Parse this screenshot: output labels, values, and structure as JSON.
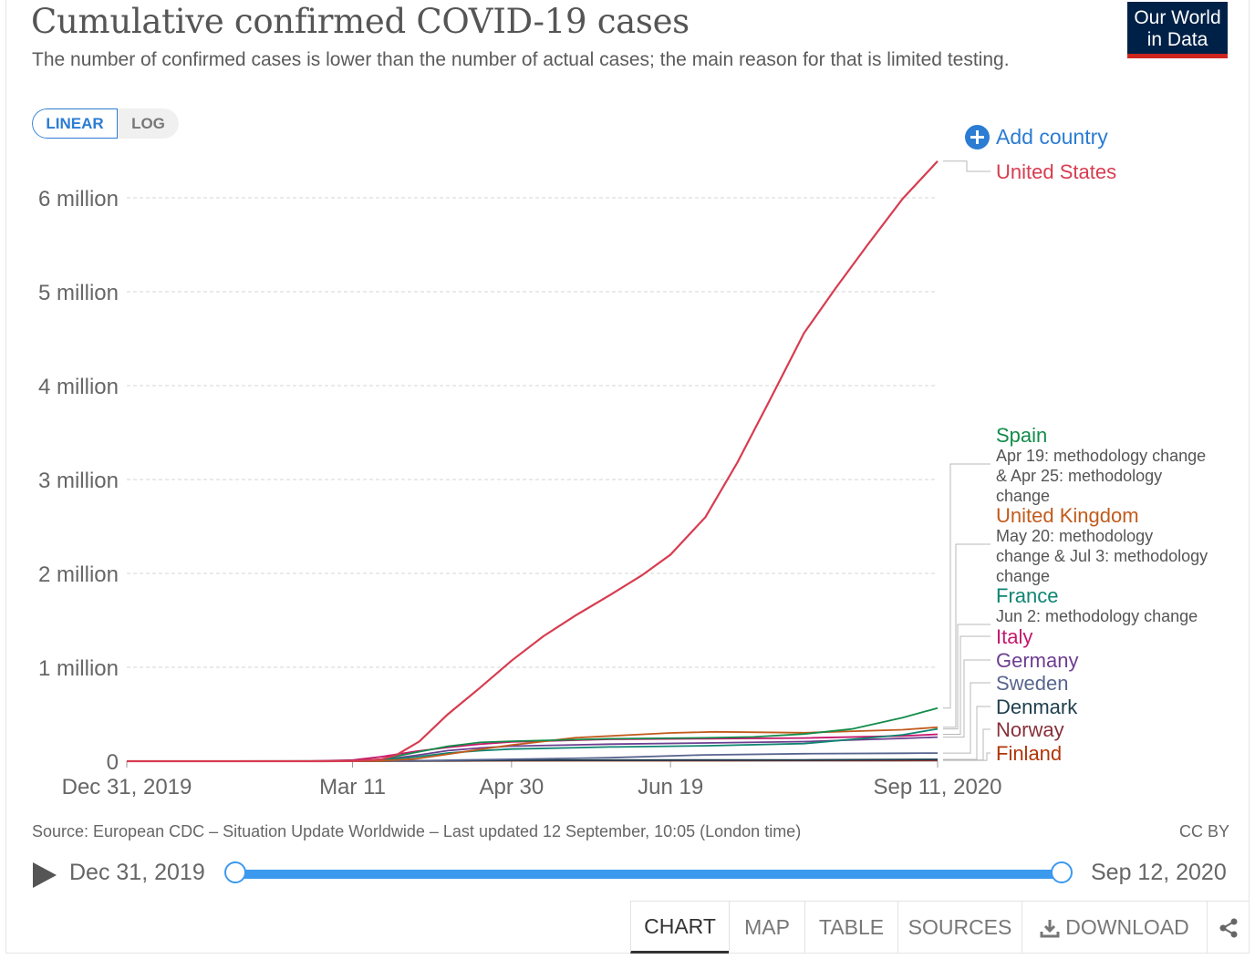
{
  "header": {
    "title": "Cumulative confirmed COVID-19 cases",
    "subtitle": "The number of confirmed cases is lower than the number of actual cases; the main reason for that is limited testing.",
    "logo_line1": "Our World",
    "logo_line2": "in Data",
    "logo_color": "#002147",
    "logo_accent": "#ce261e"
  },
  "controls": {
    "linear_label": "LINEAR",
    "log_label": "LOG",
    "active_scale": "linear",
    "add_country_label": "Add country",
    "add_icon": "plus-circle-icon"
  },
  "chart_data": {
    "type": "line",
    "title": "Cumulative confirmed COVID-19 cases",
    "xlabel": "",
    "ylabel": "",
    "x_range": [
      "2019-12-31",
      "2020-09-11"
    ],
    "ylim": [
      0,
      6000000
    ],
    "y_ticks": [
      {
        "value": 0,
        "label": "0"
      },
      {
        "value": 1000000,
        "label": "1 million"
      },
      {
        "value": 2000000,
        "label": "2 million"
      },
      {
        "value": 3000000,
        "label": "3 million"
      },
      {
        "value": 4000000,
        "label": "4 million"
      },
      {
        "value": 5000000,
        "label": "5 million"
      },
      {
        "value": 6000000,
        "label": "6 million"
      }
    ],
    "x_ticks": [
      {
        "date": "2019-12-31",
        "label": "Dec 31, 2019"
      },
      {
        "date": "2020-03-11",
        "label": "Mar 11"
      },
      {
        "date": "2020-04-30",
        "label": "Apr 30"
      },
      {
        "date": "2020-06-19",
        "label": "Jun 19"
      },
      {
        "date": "2020-09-11",
        "label": "Sep 11, 2020"
      }
    ],
    "grid": true,
    "legend": "right",
    "series": [
      {
        "name": "United States",
        "color": "#d73c50",
        "annotation": "",
        "points": [
          [
            "2019-12-31",
            0
          ],
          [
            "2020-03-01",
            100
          ],
          [
            "2020-03-11",
            1300
          ],
          [
            "2020-03-20",
            19000
          ],
          [
            "2020-03-25",
            70000
          ],
          [
            "2020-04-01",
            210000
          ],
          [
            "2020-04-10",
            500000
          ],
          [
            "2020-04-20",
            780000
          ],
          [
            "2020-04-30",
            1070000
          ],
          [
            "2020-05-10",
            1330000
          ],
          [
            "2020-05-20",
            1550000
          ],
          [
            "2020-05-31",
            1770000
          ],
          [
            "2020-06-10",
            1980000
          ],
          [
            "2020-06-19",
            2200000
          ],
          [
            "2020-06-30",
            2600000
          ],
          [
            "2020-07-10",
            3180000
          ],
          [
            "2020-07-20",
            3830000
          ],
          [
            "2020-07-31",
            4560000
          ],
          [
            "2020-08-10",
            5040000
          ],
          [
            "2020-08-20",
            5500000
          ],
          [
            "2020-08-31",
            5990000
          ],
          [
            "2020-09-11",
            6390000
          ]
        ]
      },
      {
        "name": "Spain",
        "color": "#128c4a",
        "annotation": "Apr 19: methodology change & Apr 25: methodology change",
        "points": [
          [
            "2019-12-31",
            0
          ],
          [
            "2020-03-01",
            80
          ],
          [
            "2020-03-11",
            2000
          ],
          [
            "2020-03-20",
            20000
          ],
          [
            "2020-03-31",
            95000
          ],
          [
            "2020-04-10",
            158000
          ],
          [
            "2020-04-20",
            200000
          ],
          [
            "2020-04-30",
            213000
          ],
          [
            "2020-05-31",
            239000
          ],
          [
            "2020-06-30",
            249000
          ],
          [
            "2020-07-15",
            258000
          ],
          [
            "2020-07-31",
            289000
          ],
          [
            "2020-08-15",
            343000
          ],
          [
            "2020-08-31",
            463000
          ],
          [
            "2020-09-11",
            566000
          ]
        ]
      },
      {
        "name": "United Kingdom",
        "color": "#c15b1c",
        "annotation": "May 20: methodology change & Jul 3: methodology change",
        "points": [
          [
            "2019-12-31",
            0
          ],
          [
            "2020-03-11",
            460
          ],
          [
            "2020-03-20",
            4000
          ],
          [
            "2020-03-31",
            25000
          ],
          [
            "2020-04-10",
            74000
          ],
          [
            "2020-04-20",
            125000
          ],
          [
            "2020-04-30",
            172000
          ],
          [
            "2020-05-20",
            250000
          ],
          [
            "2020-06-19",
            301000
          ],
          [
            "2020-07-03",
            313000
          ],
          [
            "2020-07-31",
            303000
          ],
          [
            "2020-08-31",
            335000
          ],
          [
            "2020-09-11",
            361000
          ]
        ]
      },
      {
        "name": "France",
        "color": "#0f8571",
        "annotation": "Jun 2: methodology change",
        "points": [
          [
            "2019-12-31",
            0
          ],
          [
            "2020-03-11",
            1800
          ],
          [
            "2020-03-20",
            12000
          ],
          [
            "2020-03-31",
            45000
          ],
          [
            "2020-04-10",
            87000
          ],
          [
            "2020-04-20",
            112000
          ],
          [
            "2020-04-30",
            129000
          ],
          [
            "2020-05-31",
            151000
          ],
          [
            "2020-06-02",
            151000
          ],
          [
            "2020-06-30",
            164000
          ],
          [
            "2020-07-31",
            187000
          ],
          [
            "2020-08-31",
            281000
          ],
          [
            "2020-09-11",
            344000
          ]
        ]
      },
      {
        "name": "Italy",
        "color": "#c5186d",
        "annotation": "",
        "points": [
          [
            "2019-12-31",
            0
          ],
          [
            "2020-02-25",
            300
          ],
          [
            "2020-03-11",
            12000
          ],
          [
            "2020-03-20",
            47000
          ],
          [
            "2020-03-31",
            106000
          ],
          [
            "2020-04-10",
            147000
          ],
          [
            "2020-04-20",
            182000
          ],
          [
            "2020-04-30",
            205000
          ],
          [
            "2020-05-31",
            233000
          ],
          [
            "2020-06-30",
            240000
          ],
          [
            "2020-07-31",
            247000
          ],
          [
            "2020-08-31",
            269000
          ],
          [
            "2020-09-11",
            286000
          ]
        ]
      },
      {
        "name": "Germany",
        "color": "#6d3e91",
        "annotation": "",
        "points": [
          [
            "2019-12-31",
            0
          ],
          [
            "2020-03-11",
            1600
          ],
          [
            "2020-03-20",
            15000
          ],
          [
            "2020-03-31",
            62000
          ],
          [
            "2020-04-10",
            113000
          ],
          [
            "2020-04-20",
            141000
          ],
          [
            "2020-04-30",
            160000
          ],
          [
            "2020-05-31",
            182000
          ],
          [
            "2020-06-30",
            194000
          ],
          [
            "2020-07-31",
            209000
          ],
          [
            "2020-08-31",
            243000
          ],
          [
            "2020-09-11",
            256000
          ]
        ]
      },
      {
        "name": "Sweden",
        "color": "#58658f",
        "annotation": "",
        "points": [
          [
            "2019-12-31",
            0
          ],
          [
            "2020-03-11",
            500
          ],
          [
            "2020-03-31",
            4400
          ],
          [
            "2020-04-30",
            20000
          ],
          [
            "2020-05-31",
            37000
          ],
          [
            "2020-06-30",
            67000
          ],
          [
            "2020-07-31",
            80000
          ],
          [
            "2020-08-31",
            84000
          ],
          [
            "2020-09-11",
            86000
          ]
        ]
      },
      {
        "name": "Denmark",
        "color": "#203f4e",
        "annotation": "",
        "points": [
          [
            "2019-12-31",
            0
          ],
          [
            "2020-03-11",
            500
          ],
          [
            "2020-03-31",
            2900
          ],
          [
            "2020-04-30",
            9300
          ],
          [
            "2020-05-31",
            11700
          ],
          [
            "2020-06-30",
            12800
          ],
          [
            "2020-07-31",
            13800
          ],
          [
            "2020-08-31",
            17000
          ],
          [
            "2020-09-11",
            19000
          ]
        ]
      },
      {
        "name": "Norway",
        "color": "#883039",
        "annotation": "",
        "points": [
          [
            "2019-12-31",
            0
          ],
          [
            "2020-03-11",
            600
          ],
          [
            "2020-03-31",
            4500
          ],
          [
            "2020-04-30",
            7700
          ],
          [
            "2020-05-31",
            8400
          ],
          [
            "2020-06-30",
            8900
          ],
          [
            "2020-07-31",
            9200
          ],
          [
            "2020-08-31",
            10700
          ],
          [
            "2020-09-11",
            11600
          ]
        ]
      },
      {
        "name": "Finland",
        "color": "#b13507",
        "annotation": "",
        "points": [
          [
            "2019-12-31",
            0
          ],
          [
            "2020-03-11",
            60
          ],
          [
            "2020-03-31",
            1300
          ],
          [
            "2020-04-30",
            4900
          ],
          [
            "2020-05-31",
            6800
          ],
          [
            "2020-06-30",
            7200
          ],
          [
            "2020-07-31",
            7400
          ],
          [
            "2020-08-31",
            8200
          ],
          [
            "2020-09-11",
            8400
          ]
        ]
      }
    ]
  },
  "footer": {
    "source": "Source: European CDC – Situation Update Worldwide – Last updated 12 September, 10:05 (London time)",
    "license": "CC BY"
  },
  "timeline": {
    "start_label": "Dec 31, 2019",
    "end_label": "Sep 12, 2020",
    "play_icon": "play-icon"
  },
  "tabs": [
    {
      "label": "CHART",
      "active": true
    },
    {
      "label": "MAP",
      "active": false
    },
    {
      "label": "TABLE",
      "active": false
    },
    {
      "label": "SOURCES",
      "active": false
    },
    {
      "label": "DOWNLOAD",
      "active": false
    }
  ]
}
